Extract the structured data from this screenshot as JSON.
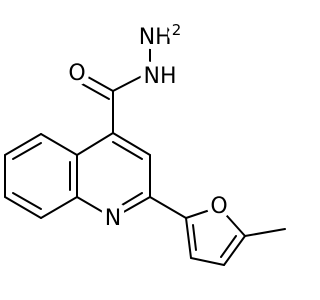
{
  "atoms": [
    {
      "label": "O"
    },
    {
      "label": "NH"
    },
    {
      "label": "NH",
      "subscript": "2"
    },
    {
      "label": "N"
    },
    {
      "label": "O"
    }
  ]
}
